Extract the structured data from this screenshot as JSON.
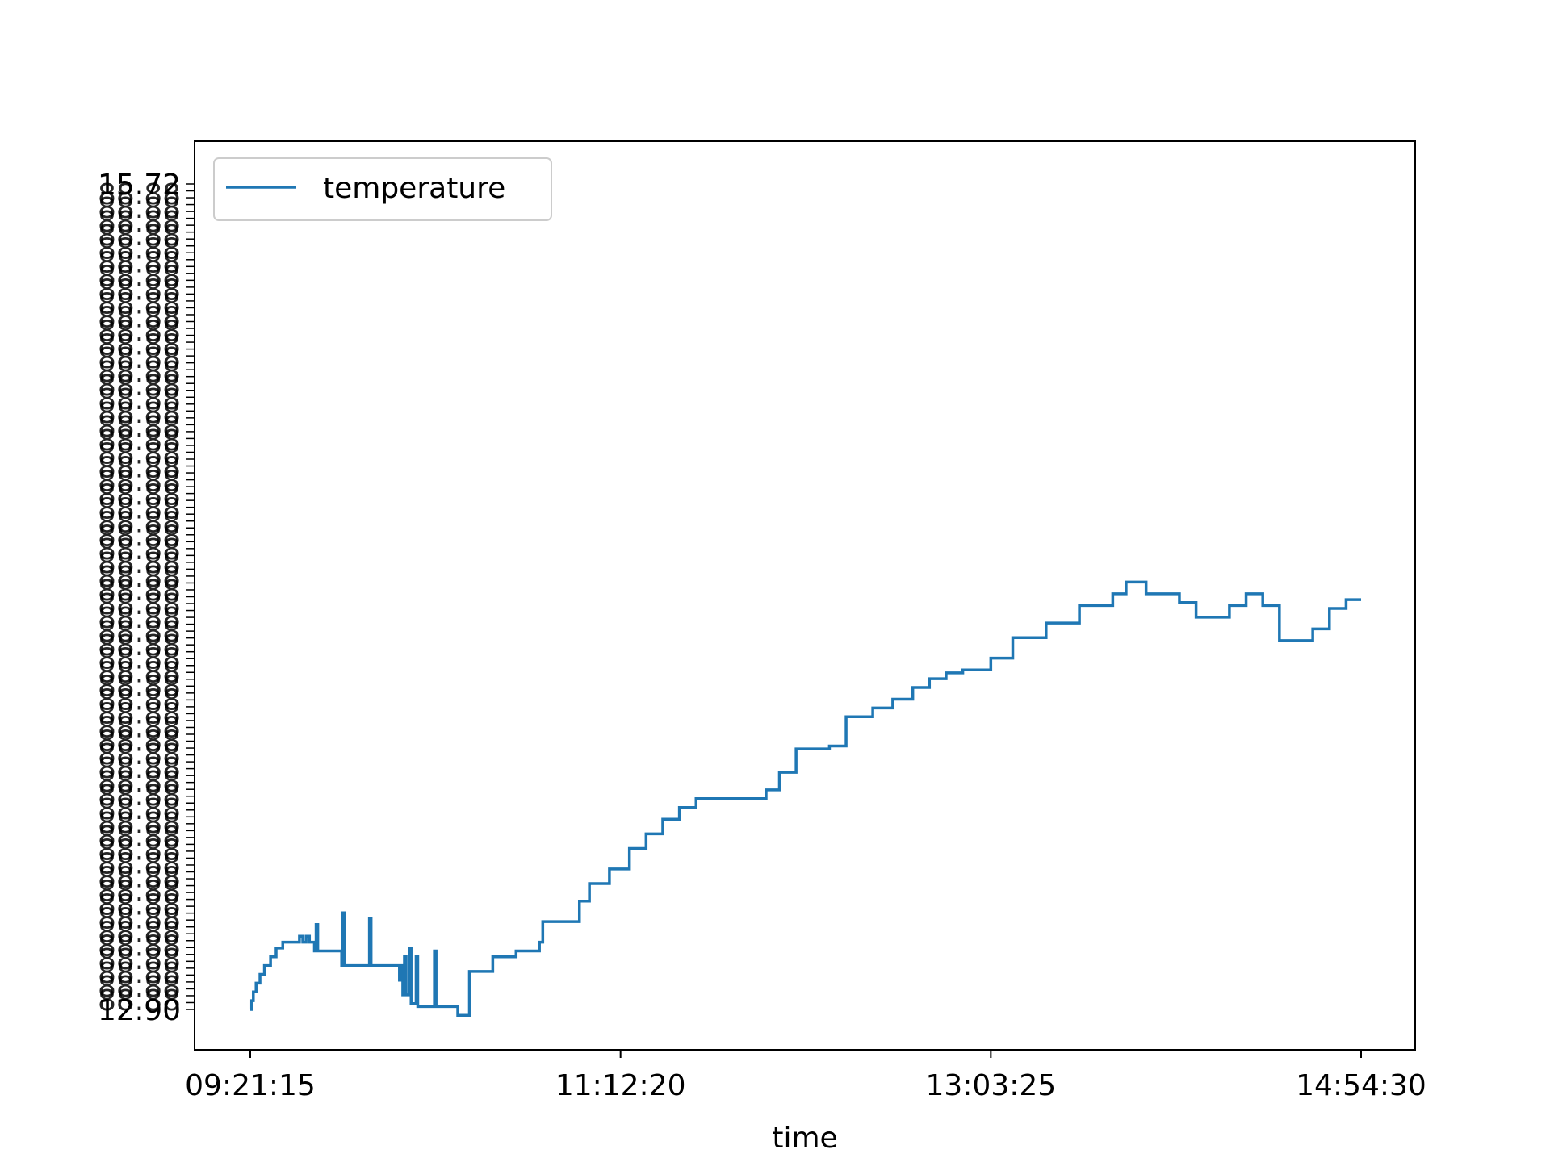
{
  "chart_data": {
    "type": "line",
    "title": "",
    "xlabel": "time",
    "ylabel": "",
    "x_ticks": [
      "09:21:15",
      "11:12:20",
      "13:03:25",
      "14:54:30"
    ],
    "x_range": [
      "09:21:15",
      "14:54:30"
    ],
    "y_range": [
      12.9,
      15.72
    ],
    "y_tick_labels_note": "dense overlapping categorical tick labels; only extremes legible",
    "y_tick_labels_visible": [
      "12.90",
      "15.72"
    ],
    "legend": {
      "position": "top-left",
      "entries": [
        "temperature"
      ]
    },
    "grid": false,
    "series": [
      {
        "name": "temperature",
        "color": "#1f77b4",
        "points": [
          [
            "09:21:15",
            12.9
          ],
          [
            "09:21:40",
            12.93
          ],
          [
            "09:22:10",
            12.96
          ],
          [
            "09:23:00",
            12.99
          ],
          [
            "09:24:10",
            13.02
          ],
          [
            "09:25:30",
            13.05
          ],
          [
            "09:27:20",
            13.08
          ],
          [
            "09:29:00",
            13.11
          ],
          [
            "09:31:00",
            13.13
          ],
          [
            "09:35:30",
            13.13
          ],
          [
            "09:36:00",
            13.15
          ],
          [
            "09:37:00",
            13.13
          ],
          [
            "09:38:00",
            13.15
          ],
          [
            "09:39:00",
            13.13
          ],
          [
            "09:40:30",
            13.1
          ],
          [
            "09:41:00",
            13.19
          ],
          [
            "09:41:30",
            13.1
          ],
          [
            "09:48:00",
            13.1
          ],
          [
            "09:48:40",
            13.05
          ],
          [
            "09:49:00",
            13.23
          ],
          [
            "09:49:30",
            13.05
          ],
          [
            "09:56:30",
            13.05
          ],
          [
            "09:57:00",
            13.21
          ],
          [
            "09:57:30",
            13.05
          ],
          [
            "10:06:00",
            13.0
          ],
          [
            "10:06:30",
            13.05
          ],
          [
            "10:07:00",
            12.95
          ],
          [
            "10:07:30",
            13.08
          ],
          [
            "10:08:00",
            12.95
          ],
          [
            "10:09:00",
            13.11
          ],
          [
            "10:09:30",
            12.92
          ],
          [
            "10:10:00",
            12.92
          ],
          [
            "10:11:00",
            13.08
          ],
          [
            "10:11:30",
            12.91
          ],
          [
            "10:16:00",
            12.91
          ],
          [
            "10:16:30",
            13.1
          ],
          [
            "10:17:00",
            12.91
          ],
          [
            "10:23:00",
            12.91
          ],
          [
            "10:23:30",
            12.88
          ],
          [
            "10:26:30",
            12.88
          ],
          [
            "10:27:00",
            13.03
          ],
          [
            "10:28:30",
            13.03
          ],
          [
            "10:29:00",
            13.03
          ],
          [
            "10:33:00",
            13.03
          ],
          [
            "10:34:00",
            13.08
          ],
          [
            "10:41:00",
            13.1
          ],
          [
            "10:48:00",
            13.13
          ],
          [
            "10:49:00",
            13.2
          ],
          [
            "10:55:00",
            13.2
          ],
          [
            "11:00:00",
            13.27
          ],
          [
            "11:03:00",
            13.33
          ],
          [
            "11:09:00",
            13.38
          ],
          [
            "11:15:00",
            13.45
          ],
          [
            "11:20:00",
            13.5
          ],
          [
            "11:25:00",
            13.55
          ],
          [
            "11:30:00",
            13.59
          ],
          [
            "11:35:00",
            13.62
          ],
          [
            "11:40:00",
            13.62
          ],
          [
            "11:50:00",
            13.62
          ],
          [
            "11:55:00",
            13.62
          ],
          [
            "11:56:00",
            13.65
          ],
          [
            "12:00:00",
            13.71
          ],
          [
            "12:05:00",
            13.79
          ],
          [
            "12:15:00",
            13.8
          ],
          [
            "12:20:00",
            13.9
          ],
          [
            "12:28:00",
            13.93
          ],
          [
            "12:34:00",
            13.96
          ],
          [
            "12:40:00",
            14.0
          ],
          [
            "12:45:00",
            14.03
          ],
          [
            "12:50:00",
            14.05
          ],
          [
            "12:55:00",
            14.06
          ],
          [
            "13:03:25",
            14.1
          ],
          [
            "13:10:00",
            14.17
          ],
          [
            "13:20:00",
            14.22
          ],
          [
            "13:30:00",
            14.28
          ],
          [
            "13:40:00",
            14.32
          ],
          [
            "13:43:00",
            14.32
          ],
          [
            "13:44:00",
            14.36
          ],
          [
            "13:50:00",
            14.32
          ],
          [
            "13:58:00",
            14.32
          ],
          [
            "14:00:00",
            14.29
          ],
          [
            "14:05:00",
            14.24
          ],
          [
            "14:10:00",
            14.24
          ],
          [
            "14:15:00",
            14.28
          ],
          [
            "14:20:00",
            14.32
          ],
          [
            "14:25:00",
            14.28
          ],
          [
            "14:30:00",
            14.16
          ],
          [
            "14:35:00",
            14.16
          ],
          [
            "14:40:00",
            14.2
          ],
          [
            "14:45:00",
            14.27
          ],
          [
            "14:50:00",
            14.3
          ],
          [
            "14:54:30",
            14.3
          ]
        ]
      }
    ]
  }
}
